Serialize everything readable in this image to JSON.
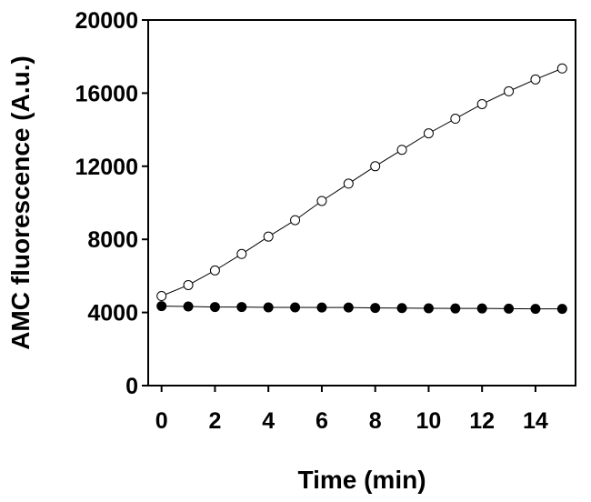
{
  "chart_data": {
    "type": "line",
    "title": "",
    "xlabel": "Time (min)",
    "ylabel": "AMC fluorescence (A.u.)",
    "xlim": [
      -0.5,
      15.5
    ],
    "ylim": [
      0,
      20000
    ],
    "x_ticks": [
      0,
      2,
      4,
      6,
      8,
      10,
      12,
      14
    ],
    "y_ticks": [
      0,
      4000,
      8000,
      12000,
      16000,
      20000
    ],
    "grid": false,
    "legend": "none",
    "series": [
      {
        "marker": "open-circle",
        "x": [
          0,
          1,
          2,
          3,
          4,
          5,
          6,
          7,
          8,
          9,
          10,
          11,
          12,
          13,
          14,
          15
        ],
        "y": [
          4900,
          5500,
          6300,
          7200,
          8150,
          9050,
          10100,
          11050,
          12000,
          12900,
          13800,
          14600,
          15400,
          16100,
          16750,
          17350
        ]
      },
      {
        "marker": "filled-circle",
        "x": [
          0,
          1,
          2,
          3,
          4,
          5,
          6,
          7,
          8,
          9,
          10,
          11,
          12,
          13,
          14,
          15
        ],
        "y": [
          4350,
          4330,
          4300,
          4300,
          4280,
          4280,
          4270,
          4270,
          4250,
          4240,
          4230,
          4220,
          4220,
          4210,
          4200,
          4200
        ]
      }
    ]
  }
}
